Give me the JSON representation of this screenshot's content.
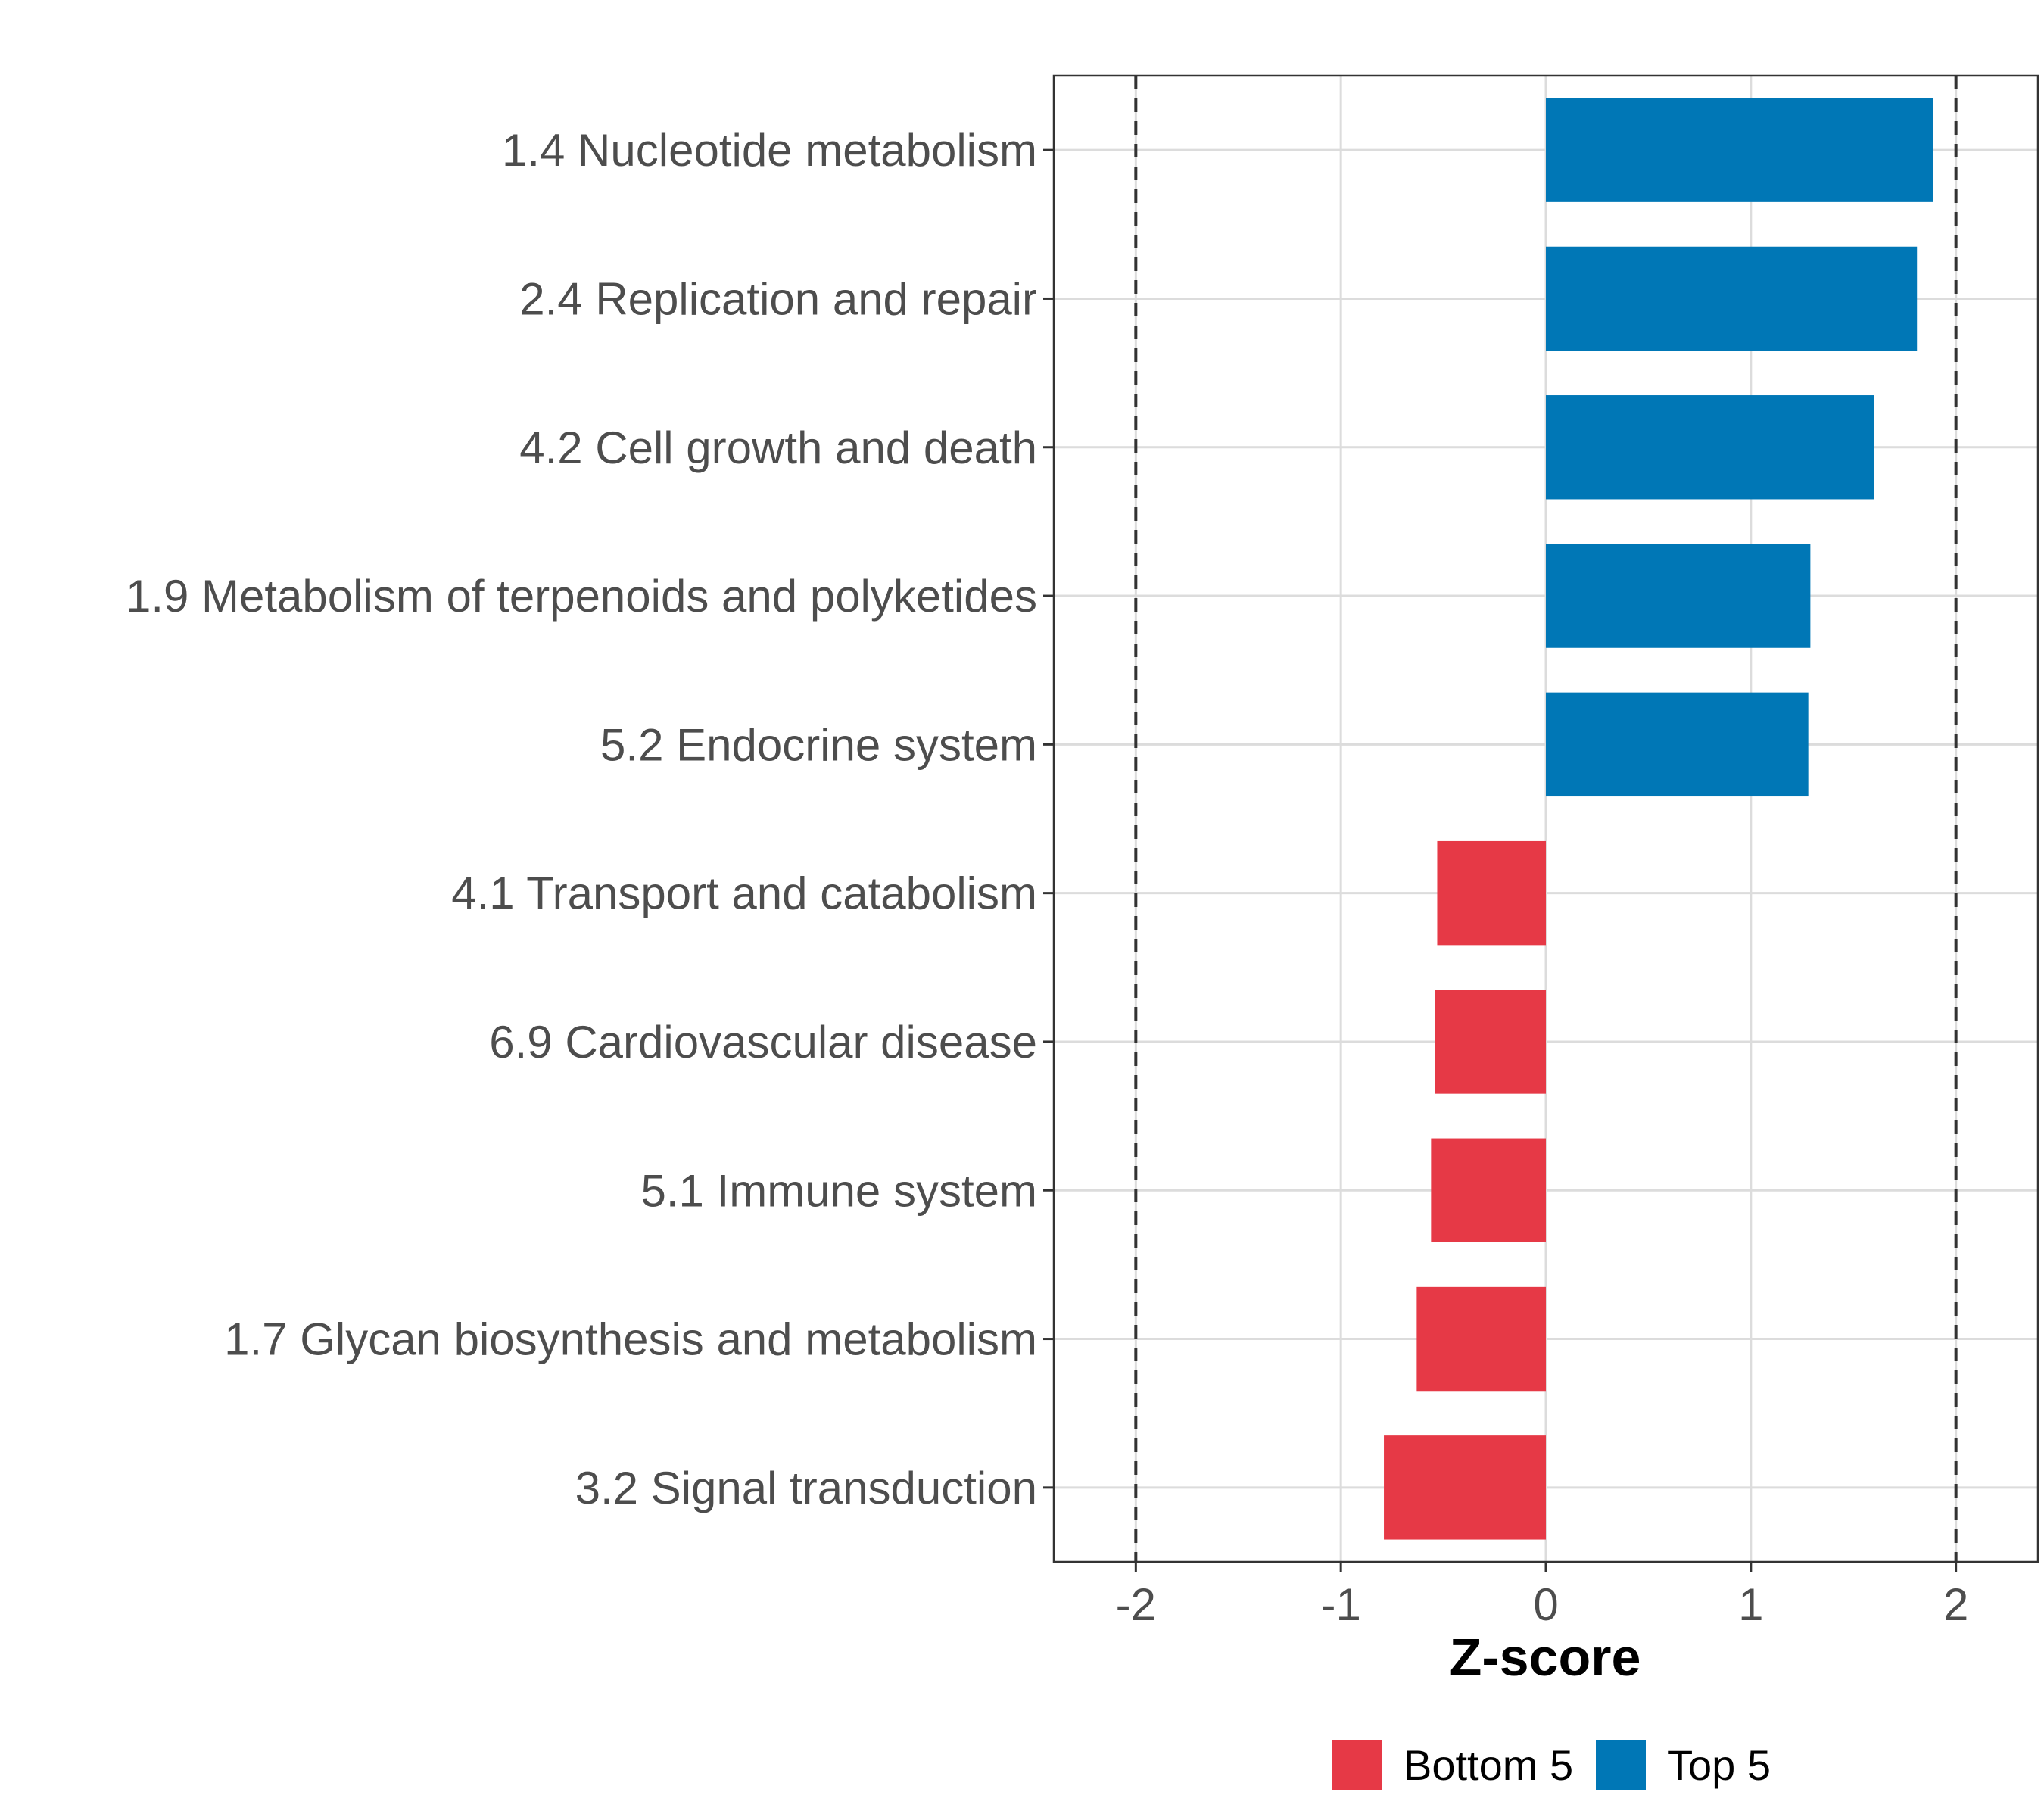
{
  "chart_data": {
    "type": "bar",
    "orientation": "horizontal",
    "categories": [
      "1.4 Nucleotide metabolism",
      "2.4 Replication and repair",
      "4.2 Cell growth and death",
      "1.9 Metabolism of terpenoids and polyketides",
      "5.2 Endocrine system",
      "4.1 Transport and catabolism",
      "6.9 Cardiovascular disease",
      "5.1 Immune system",
      "1.7 Glycan biosynthesis and metabolism",
      "3.2 Signal transduction"
    ],
    "values": [
      1.89,
      1.81,
      1.6,
      1.29,
      1.28,
      -0.53,
      -0.54,
      -0.56,
      -0.63,
      -0.79
    ],
    "groups": [
      "Top 5",
      "Top 5",
      "Top 5",
      "Top 5",
      "Top 5",
      "Bottom 5",
      "Bottom 5",
      "Bottom 5",
      "Bottom 5",
      "Bottom 5"
    ],
    "xlabel": "Z-score",
    "ylabel": "",
    "xlim": [
      -2.4,
      2.4
    ],
    "xticks": [
      -2,
      -1,
      0,
      1,
      2
    ],
    "xtick_labels": [
      "-2",
      "-1",
      "0",
      "1",
      "2"
    ],
    "reference_lines": [
      -2,
      2
    ],
    "grid": true,
    "legend": {
      "placement": "bottom",
      "entries": [
        {
          "label": "Bottom 5",
          "color": "#e63946"
        },
        {
          "label": "Top 5",
          "color": "#0077b6"
        }
      ]
    }
  }
}
